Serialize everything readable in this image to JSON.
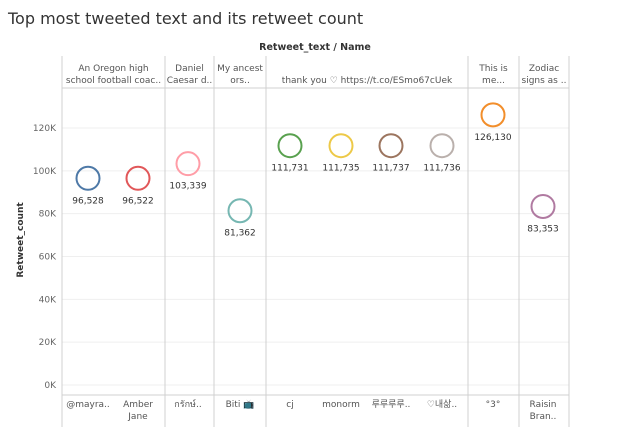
{
  "chart_data": {
    "type": "scatter",
    "title": "Top most tweeted text and its retweet count",
    "column_header": "Retweet_text / Name",
    "ylabel": "Retweet_count",
    "ylim": [
      0,
      140000
    ],
    "yticks": [
      {
        "value": 0,
        "label": "0K"
      },
      {
        "value": 20000,
        "label": "20K"
      },
      {
        "value": 40000,
        "label": "40K"
      },
      {
        "value": 60000,
        "label": "60K"
      },
      {
        "value": 80000,
        "label": "80K"
      },
      {
        "value": 100000,
        "label": "100K"
      },
      {
        "value": 120000,
        "label": "120K"
      }
    ],
    "groups": [
      {
        "label": [
          "An Oregon high",
          "school football coac.."
        ]
      },
      {
        "label": [
          "Daniel",
          "Caesar d.."
        ]
      },
      {
        "label": [
          "My ancest",
          "ors.."
        ]
      },
      {
        "label": [
          "thank you ♡ https://t.co/ESmo67cUek"
        ]
      },
      {
        "label": [
          "This is",
          "me..."
        ]
      },
      {
        "label": [
          "Zodiac",
          "signs as .."
        ]
      }
    ],
    "points": [
      {
        "group": 0,
        "name": [
          "@mayra.."
        ],
        "value": 96528,
        "label": "96,528",
        "color": "#4e79a7"
      },
      {
        "group": 0,
        "name": [
          "Amber",
          "Jane"
        ],
        "value": 96522,
        "label": "96,522",
        "color": "#e15759"
      },
      {
        "group": 1,
        "name": [
          "กรักษ์.."
        ],
        "value": 103339,
        "label": "103,339",
        "color": "#ff9da7"
      },
      {
        "group": 2,
        "name": [
          "Biti 📺"
        ],
        "value": 81362,
        "label": "81,362",
        "color": "#76b7b2"
      },
      {
        "group": 3,
        "name": [
          "cj"
        ],
        "value": 111731,
        "label": "111,731",
        "color": "#59a14f"
      },
      {
        "group": 3,
        "name": [
          "monorm"
        ],
        "value": 111735,
        "label": "111,735",
        "color": "#edc948"
      },
      {
        "group": 3,
        "name": [
          "루루루루.."
        ],
        "value": 111737,
        "label": "111,737",
        "color": "#9c755f"
      },
      {
        "group": 3,
        "name": [
          "♡내삶.."
        ],
        "value": 111736,
        "label": "111,736",
        "color": "#bab0ac"
      },
      {
        "group": 4,
        "name": [
          "°3°"
        ],
        "value": 126130,
        "label": "126,130",
        "color": "#f28e2b"
      },
      {
        "group": 5,
        "name": [
          "Raisin",
          "Bran.."
        ],
        "value": 83353,
        "label": "83,353",
        "color": "#b07aa1"
      }
    ],
    "grid": true,
    "legend": "none"
  }
}
